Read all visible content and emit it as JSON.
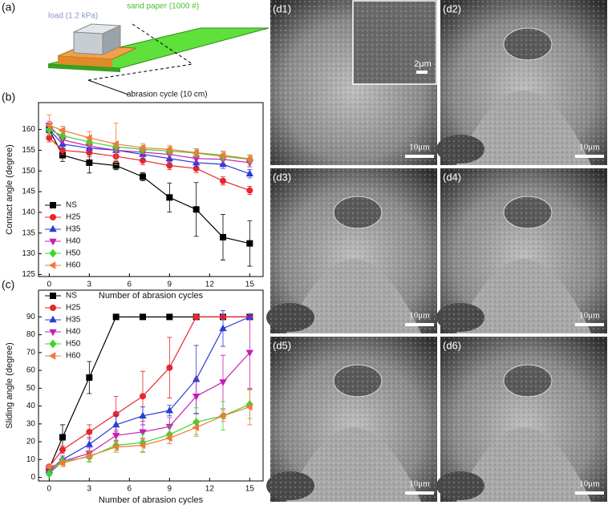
{
  "schematic": {
    "label": "(a)",
    "load": "load (1.2 kPa)",
    "paper": "sand paper (1000 #)",
    "cycle": "abrasion cycle (10 cm)"
  },
  "chart_data": [
    {
      "type": "line",
      "panel_label": "(b)",
      "xlabel": "Number of abrasion cycles",
      "ylabel": "Contact angle (degree)",
      "x": [
        0,
        1,
        3,
        5,
        7,
        9,
        11,
        13,
        15
      ],
      "xlim": [
        -0.8,
        16
      ],
      "xticks": [
        0,
        3,
        6,
        9,
        12,
        15
      ],
      "ylim": [
        124.5,
        166.5
      ],
      "yticks": [
        125,
        130,
        135,
        140,
        145,
        150,
        155,
        160
      ],
      "legend": "lower left",
      "series": [
        {
          "name": "NS",
          "color": "#000000",
          "marker": "square",
          "values": [
            160,
            153.8,
            152,
            151.3,
            148.6,
            143.6,
            140.7,
            134,
            132.5
          ],
          "errors": [
            1.5,
            1.5,
            2.5,
            1,
            1,
            3.5,
            6.5,
            5.5,
            5.5
          ]
        },
        {
          "name": "H25",
          "color": "#e8262b",
          "marker": "circle",
          "values": [
            158,
            155,
            154.4,
            153.5,
            152.5,
            151.3,
            150.6,
            147.6,
            145.3
          ],
          "errors": [
            1,
            1,
            1,
            1,
            1,
            1,
            1,
            1,
            1
          ]
        },
        {
          "name": "H35",
          "color": "#2a3cd6",
          "marker": "triangle-up",
          "values": [
            160,
            156.5,
            155.5,
            155,
            154,
            153,
            152,
            151.6,
            149.3
          ],
          "errors": [
            1,
            1,
            1,
            1,
            1,
            1,
            1,
            1,
            1
          ]
        },
        {
          "name": "H40",
          "color": "#c41fb4",
          "marker": "triangle-down",
          "values": [
            161,
            157.5,
            156,
            155,
            154.5,
            154,
            153,
            152.8,
            152
          ],
          "errors": [
            1,
            1,
            1,
            1,
            1,
            1,
            1,
            1,
            1
          ]
        },
        {
          "name": "H50",
          "color": "#3ad62a",
          "marker": "diamond",
          "values": [
            160,
            158.5,
            157,
            155.8,
            155.2,
            154.8,
            154.3,
            153.5,
            152.8
          ],
          "errors": [
            1,
            1,
            1,
            1,
            1,
            1,
            1,
            1,
            1
          ]
        },
        {
          "name": "H60",
          "color": "#f07a3a",
          "marker": "triangle-left",
          "values": [
            161,
            159.8,
            158,
            156.5,
            155.6,
            155.2,
            154.4,
            153.8,
            152.9
          ],
          "errors": [
            2.5,
            1,
            1.5,
            5,
            1,
            1,
            1,
            1,
            1
          ]
        }
      ]
    },
    {
      "type": "line",
      "panel_label": "(c)",
      "xlabel": "Number of abrasion cycles",
      "ylabel": "Sliding angle (degree)",
      "x": [
        0,
        1,
        3,
        5,
        7,
        9,
        11,
        13,
        15
      ],
      "xlim": [
        -0.8,
        16
      ],
      "xticks": [
        0,
        3,
        6,
        9,
        12,
        15
      ],
      "ylim": [
        -2,
        105
      ],
      "yticks": [
        0,
        10,
        20,
        30,
        40,
        50,
        60,
        70,
        80,
        90
      ],
      "legend": "upper left",
      "series": [
        {
          "name": "NS",
          "color": "#000000",
          "marker": "square",
          "values": [
            5,
            22.5,
            56,
            90,
            90,
            90,
            90,
            90,
            90
          ],
          "errors": [
            2,
            7,
            9,
            0,
            0,
            0,
            0,
            0,
            0
          ]
        },
        {
          "name": "H25",
          "color": "#e8262b",
          "marker": "circle",
          "values": [
            6,
            15.5,
            25.5,
            35.5,
            45.5,
            61.5,
            90,
            90,
            90
          ],
          "errors": [
            1,
            2,
            4,
            10,
            14,
            17,
            0,
            0,
            0
          ]
        },
        {
          "name": "H35",
          "color": "#2a3cd6",
          "marker": "triangle-up",
          "values": [
            4,
            10,
            18.5,
            29.5,
            34.5,
            37.5,
            55,
            83.5,
            90
          ],
          "errors": [
            1,
            2,
            4,
            5,
            5,
            3,
            19,
            10,
            0
          ]
        },
        {
          "name": "H40",
          "color": "#c41fb4",
          "marker": "triangle-down",
          "values": [
            3,
            9,
            13.5,
            23.5,
            25.5,
            28.5,
            45.5,
            53.5,
            70
          ],
          "errors": [
            1,
            2,
            3,
            3,
            4,
            5,
            10,
            15,
            20
          ]
        },
        {
          "name": "H50",
          "color": "#3ad62a",
          "marker": "diamond",
          "values": [
            2,
            9,
            11.5,
            18,
            19.5,
            24,
            31,
            34.5,
            41
          ],
          "errors": [
            1,
            2,
            3,
            3,
            5,
            5,
            8,
            8,
            8
          ]
        },
        {
          "name": "H60",
          "color": "#f07a3a",
          "marker": "triangle-left",
          "values": [
            6,
            8,
            12,
            17,
            18,
            22,
            28,
            34.5,
            39.5
          ],
          "errors": [
            1,
            2,
            3,
            3,
            4,
            3,
            4,
            3,
            10
          ]
        }
      ]
    }
  ],
  "images": [
    {
      "label": "(d1)",
      "scale": "10μm",
      "inset_scale": "2μm"
    },
    {
      "label": "(d2)",
      "scale": "10μm"
    },
    {
      "label": "(d3)",
      "scale": "10μm"
    },
    {
      "label": "(d4)",
      "scale": "10μm"
    },
    {
      "label": "(d5)",
      "scale": "10μm"
    },
    {
      "label": "(d6)",
      "scale": "10μm"
    }
  ]
}
